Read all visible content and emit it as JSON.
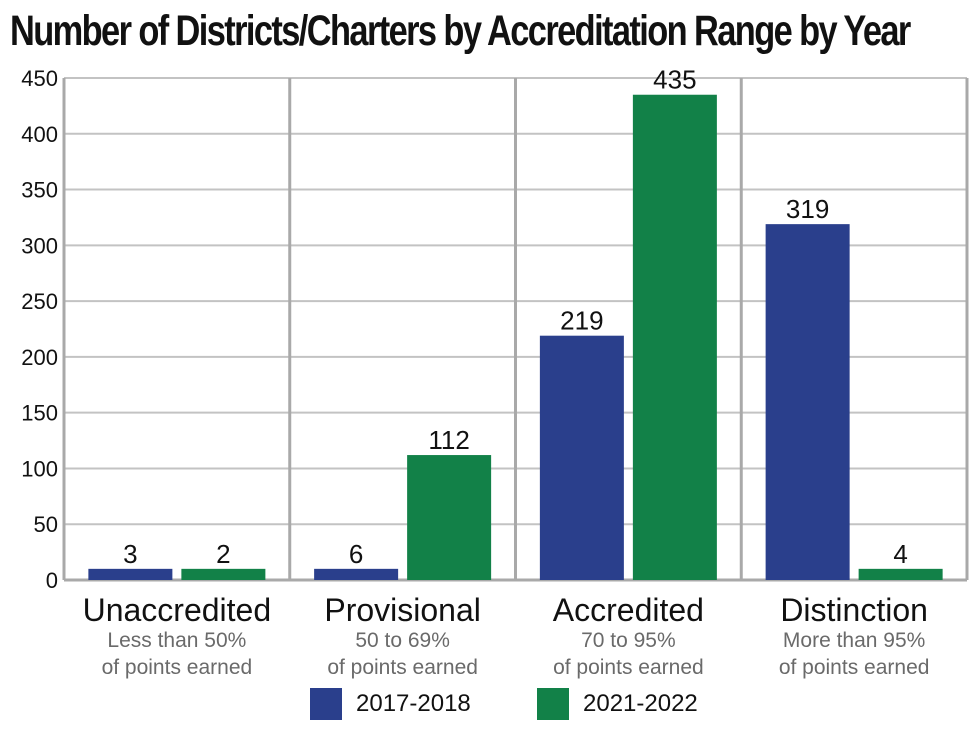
{
  "title": "Number of Districts/Charters by Accreditation Range by Year",
  "colors": {
    "series_2017": "#2a3f8c",
    "series_2021": "#128148",
    "grid": "#c3c3c3",
    "axis": "#a9a9a9",
    "subtext": "#6a6a6a"
  },
  "chart_data": {
    "type": "bar",
    "title": "Number of Districts/Charters by Accreditation Range by Year",
    "categories": [
      "Unaccredited",
      "Provisional",
      "Accredited",
      "Distinction"
    ],
    "category_subtitles": [
      [
        "Less than 50%",
        "of points earned"
      ],
      [
        "50 to 69%",
        "of points earned"
      ],
      [
        "70 to 95%",
        "of points earned"
      ],
      [
        "More than 95%",
        "of points earned"
      ]
    ],
    "series": [
      {
        "name": "2017-2018",
        "values": [
          3,
          6,
          219,
          319
        ],
        "labels": [
          "3",
          "6",
          "219",
          "319"
        ]
      },
      {
        "name": "2021-2022",
        "values": [
          2,
          112,
          435,
          4
        ],
        "labels": [
          "2",
          "112",
          "435",
          "4"
        ]
      }
    ],
    "ylim": [
      0,
      450
    ],
    "yticks": [
      "0",
      "50",
      "100",
      "150",
      "200",
      "250",
      "300",
      "350",
      "400",
      "450"
    ],
    "xlabel": "",
    "ylabel": "",
    "grid": true,
    "legend_position": "bottom"
  }
}
